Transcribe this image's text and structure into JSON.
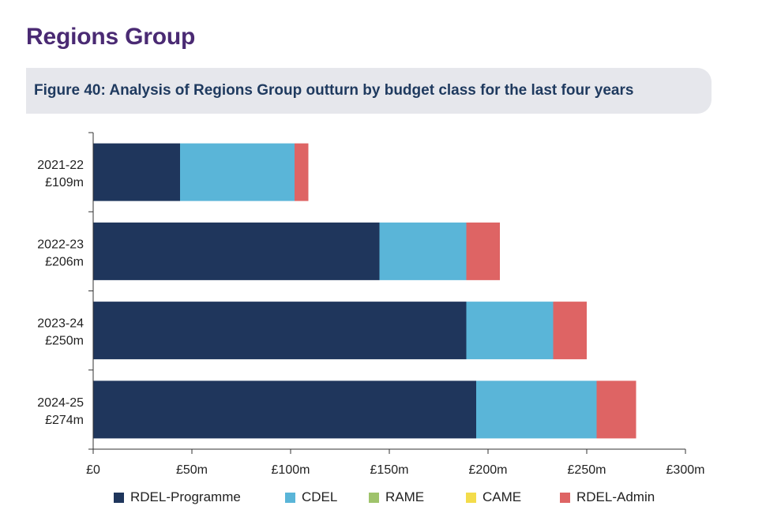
{
  "heading": "Regions Group",
  "figure_title": "Figure 40: Analysis of Regions Group outturn by budget class for the last four years",
  "colors": {
    "heading": "#4a2a73",
    "title": "#1f3a5f",
    "RDEL-Programme": "#1f365c",
    "CDEL": "#5ab5d8",
    "RAME": "#9fc36b",
    "CAME": "#f3dc4b",
    "RDEL-Admin": "#de6464"
  },
  "chart_data": {
    "type": "bar",
    "orientation": "horizontal",
    "stacked": true,
    "title": "Figure 40: Analysis of Regions Group outturn by budget class for the last four years",
    "xlabel": "",
    "ylabel": "",
    "xlim": [
      0,
      300
    ],
    "x_ticks": [
      0,
      50,
      100,
      150,
      200,
      250,
      300
    ],
    "x_tick_labels": [
      "£0",
      "£50m",
      "£100m",
      "£150m",
      "£200m",
      "£250m",
      "£300m"
    ],
    "categories": [
      "2021-22",
      "2022-23",
      "2023-24",
      "2024-25"
    ],
    "category_totals": [
      "£109m",
      "£206m",
      "£250m",
      "£274m"
    ],
    "series": [
      {
        "name": "RDEL-Programme",
        "values": [
          44,
          145,
          189,
          194
        ]
      },
      {
        "name": "CDEL",
        "values": [
          58,
          44,
          44,
          61
        ]
      },
      {
        "name": "RAME",
        "values": [
          0,
          0,
          0,
          0
        ]
      },
      {
        "name": "CAME",
        "values": [
          0,
          0,
          0,
          0
        ]
      },
      {
        "name": "RDEL-Admin",
        "values": [
          7,
          17,
          17,
          20
        ]
      }
    ],
    "legend": [
      "RDEL-Programme",
      "CDEL",
      "RAME",
      "CAME",
      "RDEL-Admin"
    ],
    "legend_position": "bottom",
    "grid": false
  }
}
